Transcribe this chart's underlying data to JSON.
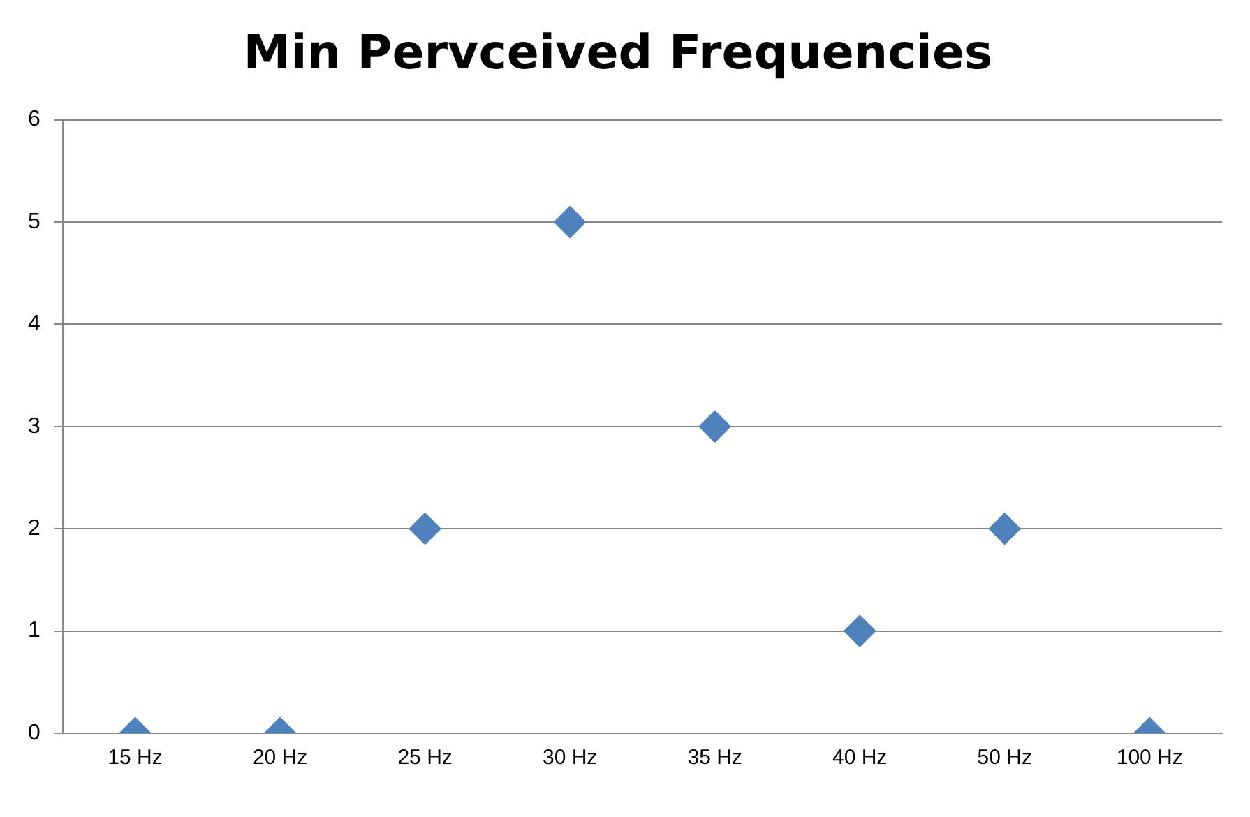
{
  "chart_data": {
    "type": "scatter",
    "title": "Min Pervceived Frequencies",
    "categories": [
      "15 Hz",
      "20 Hz",
      "25 Hz",
      "30 Hz",
      "35 Hz",
      "40 Hz",
      "50 Hz",
      "100 Hz"
    ],
    "values": [
      0,
      0,
      2,
      5,
      3,
      1,
      2,
      0
    ],
    "color": "#4f81bd",
    "ylim": [
      0,
      6
    ],
    "yticks": [
      0,
      1,
      2,
      3,
      4,
      5,
      6
    ],
    "grid": "y",
    "marker": "diamond",
    "legend": false
  }
}
